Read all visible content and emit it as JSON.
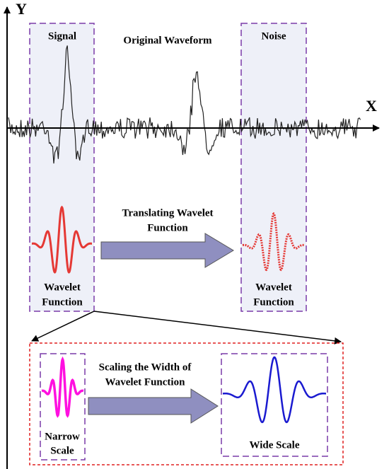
{
  "axes": {
    "y_label": "Y",
    "x_label": "X"
  },
  "top": {
    "signal_label": "Signal",
    "title": "Original Waveform",
    "noise_label": "Noise",
    "translate_label": [
      "Translating Wavelet",
      "Function"
    ],
    "left_wavelet_label": [
      "Wavelet",
      "Function"
    ],
    "right_wavelet_label": [
      "Wavelet",
      "Function"
    ]
  },
  "bottom": {
    "scale_label": [
      "Scaling the Width of",
      "Wavelet Function"
    ],
    "narrow_label": [
      "Narrow",
      "Scale"
    ],
    "wide_label": "Wide Scale"
  }
}
